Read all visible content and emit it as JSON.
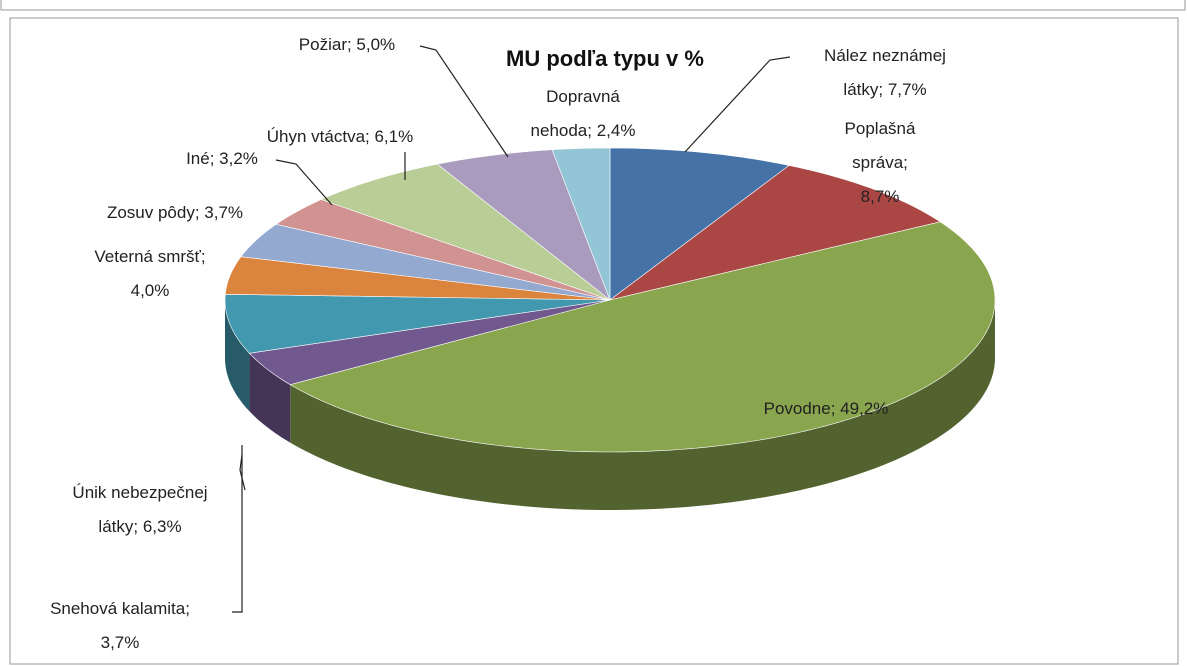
{
  "chart_data": {
    "type": "pie3d",
    "title": "MU podľa typu v %",
    "values": [
      7.7,
      8.7,
      49.2,
      3.7,
      6.3,
      4.0,
      3.7,
      3.2,
      6.1,
      5.0,
      2.4
    ],
    "value_labels": [
      "Nález neznámej látky; 7,7%",
      "Poplašná správa; 8,7%",
      "Povodne; 49,2%",
      "Snehová kalamita; 3,7%",
      "Únik nebezpečnej látky; 6,3%",
      "Veterná smršť; 4,0%",
      "Zosuv pôdy; 3,7%",
      "Iné; 3,2%",
      "Úhyn vtáctva; 6,1%",
      "Požiar; 5,0%",
      "Dopravná nehoda; 2,4%"
    ],
    "colors": [
      "#4572a7",
      "#aa4643",
      "#89a54e",
      "#71588f",
      "#4198af",
      "#db843d",
      "#93a9cf",
      "#d19392",
      "#b9cd96",
      "#a99bbd",
      "#92c5d6"
    ]
  }
}
